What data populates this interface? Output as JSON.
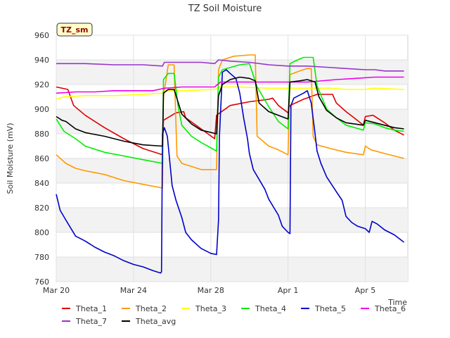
{
  "chart_data": {
    "type": "line",
    "title": "TZ Soil Moisture",
    "xlabel": "Time",
    "ylabel": "Soil Moisture (mV)",
    "site_badge": "TZ_sm",
    "x_range_days": [
      0,
      18.2
    ],
    "x_ticks": [
      {
        "label": "Mar 20",
        "day": 0
      },
      {
        "label": "Mar 24",
        "day": 4
      },
      {
        "label": "Mar 28",
        "day": 8
      },
      {
        "label": "Apr 1",
        "day": 12
      },
      {
        "label": "Apr 5",
        "day": 16
      }
    ],
    "ylim": [
      760,
      960
    ],
    "y_ticks": [
      760,
      780,
      800,
      820,
      840,
      860,
      880,
      900,
      920,
      940,
      960
    ],
    "grid": true,
    "legend_placement": "bottom",
    "series": [
      {
        "name": "Theta_1",
        "color": "#dd0000",
        "points": [
          [
            0,
            918
          ],
          [
            0.6,
            916
          ],
          [
            0.9,
            903
          ],
          [
            1.5,
            895
          ],
          [
            2.5,
            885
          ],
          [
            3.5,
            876
          ],
          [
            4.5,
            868
          ],
          [
            5.5,
            863
          ],
          [
            5.55,
            891
          ],
          [
            6.2,
            897
          ],
          [
            6.6,
            898
          ],
          [
            6.7,
            893
          ],
          [
            7.5,
            884
          ],
          [
            8.2,
            876
          ],
          [
            8.3,
            895
          ],
          [
            9,
            903
          ],
          [
            10,
            906
          ],
          [
            11,
            908
          ],
          [
            11.2,
            909
          ],
          [
            11.5,
            903
          ],
          [
            12,
            897
          ],
          [
            12.1,
            903
          ],
          [
            12.8,
            908
          ],
          [
            13.5,
            912
          ],
          [
            14.3,
            912
          ],
          [
            14.5,
            905
          ],
          [
            15,
            898
          ],
          [
            15.5,
            892
          ],
          [
            15.9,
            887
          ],
          [
            16,
            894
          ],
          [
            16.4,
            895
          ],
          [
            17,
            889
          ],
          [
            17.5,
            883
          ],
          [
            18,
            879
          ]
        ]
      },
      {
        "name": "Theta_2",
        "color": "#ff9900",
        "points": [
          [
            0,
            863
          ],
          [
            0.5,
            856
          ],
          [
            1,
            852
          ],
          [
            1.5,
            850
          ],
          [
            2.5,
            847
          ],
          [
            3.5,
            842
          ],
          [
            4.5,
            839
          ],
          [
            5.5,
            836
          ],
          [
            5.55,
            910
          ],
          [
            5.8,
            936
          ],
          [
            6.1,
            936
          ],
          [
            6.25,
            862
          ],
          [
            6.5,
            856
          ],
          [
            7.5,
            851
          ],
          [
            8.3,
            851
          ],
          [
            8.4,
            932
          ],
          [
            8.6,
            940
          ],
          [
            9.2,
            943
          ],
          [
            10,
            944
          ],
          [
            10.3,
            944
          ],
          [
            10.4,
            878
          ],
          [
            11,
            870
          ],
          [
            11.5,
            867
          ],
          [
            12,
            863
          ],
          [
            12.1,
            928
          ],
          [
            12.6,
            931
          ],
          [
            13,
            933
          ],
          [
            13.2,
            933
          ],
          [
            13.3,
            878
          ],
          [
            13.5,
            871
          ],
          [
            14.2,
            868
          ],
          [
            15,
            865
          ],
          [
            15.9,
            863
          ],
          [
            16,
            870
          ],
          [
            16.3,
            867
          ],
          [
            17,
            864
          ],
          [
            17.5,
            862
          ],
          [
            18,
            860
          ]
        ]
      },
      {
        "name": "Theta_3",
        "color": "#ffff00",
        "points": [
          [
            0,
            908
          ],
          [
            0.4,
            910
          ],
          [
            1.5,
            911
          ],
          [
            3,
            911
          ],
          [
            4.5,
            912
          ],
          [
            5.5,
            913
          ],
          [
            5.6,
            915
          ],
          [
            6.5,
            915
          ],
          [
            8.2,
            916
          ],
          [
            8.4,
            918
          ],
          [
            9.5,
            918
          ],
          [
            11,
            917
          ],
          [
            12,
            917
          ],
          [
            12.4,
            917
          ],
          [
            13.3,
            917
          ],
          [
            14.2,
            917
          ],
          [
            15,
            916
          ],
          [
            16,
            916
          ],
          [
            16.4,
            917
          ],
          [
            18,
            916
          ]
        ]
      },
      {
        "name": "Theta_4",
        "color": "#00ee00",
        "points": [
          [
            0,
            892
          ],
          [
            0.4,
            882
          ],
          [
            1,
            876
          ],
          [
            1.5,
            870
          ],
          [
            2.5,
            865
          ],
          [
            3.5,
            862
          ],
          [
            4.5,
            859
          ],
          [
            5.5,
            856
          ],
          [
            5.55,
            924
          ],
          [
            5.8,
            929
          ],
          [
            6.1,
            929
          ],
          [
            6.3,
            903
          ],
          [
            6.5,
            887
          ],
          [
            7,
            878
          ],
          [
            7.5,
            873
          ],
          [
            8.3,
            866
          ],
          [
            8.4,
            926
          ],
          [
            8.6,
            932
          ],
          [
            9.5,
            936
          ],
          [
            10,
            937
          ],
          [
            10.4,
            918
          ],
          [
            11,
            902
          ],
          [
            11.5,
            890
          ],
          [
            12,
            884
          ],
          [
            12.1,
            937
          ],
          [
            12.5,
            940
          ],
          [
            12.8,
            942
          ],
          [
            13.3,
            942
          ],
          [
            13.5,
            919
          ],
          [
            14,
            900
          ],
          [
            14.5,
            893
          ],
          [
            15,
            887
          ],
          [
            15.9,
            883
          ],
          [
            16,
            889
          ],
          [
            16.5,
            888
          ],
          [
            17,
            885
          ],
          [
            17.5,
            883
          ],
          [
            18,
            882
          ]
        ]
      },
      {
        "name": "Theta_5",
        "color": "#0000cc",
        "points": [
          [
            0,
            831
          ],
          [
            0.2,
            818
          ],
          [
            0.5,
            810
          ],
          [
            1,
            797
          ],
          [
            1.5,
            793
          ],
          [
            2,
            788
          ],
          [
            2.5,
            784
          ],
          [
            3,
            781
          ],
          [
            3.5,
            777
          ],
          [
            4,
            774
          ],
          [
            4.5,
            772
          ],
          [
            5,
            769
          ],
          [
            5.4,
            767
          ],
          [
            5.45,
            768
          ],
          [
            5.5,
            880
          ],
          [
            5.6,
            885
          ],
          [
            5.75,
            878
          ],
          [
            6,
            838
          ],
          [
            6.2,
            826
          ],
          [
            6.5,
            812
          ],
          [
            6.7,
            800
          ],
          [
            7,
            794
          ],
          [
            7.5,
            787
          ],
          [
            8,
            783
          ],
          [
            8.3,
            782
          ],
          [
            8.4,
            810
          ],
          [
            8.45,
            878
          ],
          [
            8.6,
            930
          ],
          [
            8.8,
            932
          ],
          [
            9,
            929
          ],
          [
            9.3,
            925
          ],
          [
            9.5,
            913
          ],
          [
            9.7,
            893
          ],
          [
            9.9,
            876
          ],
          [
            10,
            864
          ],
          [
            10.2,
            851
          ],
          [
            10.5,
            843
          ],
          [
            10.8,
            835
          ],
          [
            11,
            827
          ],
          [
            11.5,
            814
          ],
          [
            11.7,
            805
          ],
          [
            12,
            800
          ],
          [
            12.1,
            799
          ],
          [
            12.15,
            903
          ],
          [
            12.3,
            909
          ],
          [
            12.8,
            913
          ],
          [
            13,
            915
          ],
          [
            13.2,
            905
          ],
          [
            13.4,
            880
          ],
          [
            13.5,
            866
          ],
          [
            13.7,
            856
          ],
          [
            14,
            845
          ],
          [
            14.5,
            833
          ],
          [
            14.8,
            826
          ],
          [
            15,
            813
          ],
          [
            15.3,
            808
          ],
          [
            15.6,
            805
          ],
          [
            16,
            803
          ],
          [
            16.2,
            800
          ],
          [
            16.35,
            809
          ],
          [
            16.6,
            807
          ],
          [
            17,
            802
          ],
          [
            17.5,
            798
          ],
          [
            18,
            792
          ]
        ]
      },
      {
        "name": "Theta_6",
        "color": "#ee00ee",
        "points": [
          [
            0,
            913
          ],
          [
            1,
            914
          ],
          [
            2,
            914
          ],
          [
            3,
            915
          ],
          [
            4,
            915
          ],
          [
            5,
            915
          ],
          [
            5.6,
            917
          ],
          [
            6.5,
            918
          ],
          [
            8.2,
            918
          ],
          [
            8.5,
            922
          ],
          [
            9.5,
            922
          ],
          [
            11,
            922
          ],
          [
            12,
            922
          ],
          [
            12.5,
            922
          ],
          [
            13,
            922
          ],
          [
            14.5,
            924
          ],
          [
            15.5,
            925
          ],
          [
            16.5,
            926
          ],
          [
            18,
            926
          ]
        ]
      },
      {
        "name": "Theta_7",
        "color": "#9933cc",
        "points": [
          [
            0,
            937
          ],
          [
            1.5,
            937
          ],
          [
            3,
            936
          ],
          [
            4.5,
            936
          ],
          [
            5.5,
            935
          ],
          [
            5.6,
            938
          ],
          [
            6.5,
            938
          ],
          [
            7.5,
            938
          ],
          [
            8.2,
            937
          ],
          [
            8.4,
            940
          ],
          [
            9,
            939
          ],
          [
            10,
            938
          ],
          [
            11,
            936
          ],
          [
            12,
            935
          ],
          [
            13,
            935
          ],
          [
            14,
            934
          ],
          [
            15,
            933
          ],
          [
            16,
            932
          ],
          [
            16.5,
            932
          ],
          [
            17,
            931
          ],
          [
            18,
            931
          ]
        ]
      },
      {
        "name": "Theta_avg",
        "color": "#000000",
        "points": [
          [
            0,
            894
          ],
          [
            0.3,
            891
          ],
          [
            0.5,
            890
          ],
          [
            1,
            884
          ],
          [
            1.5,
            881
          ],
          [
            2.5,
            878
          ],
          [
            3.5,
            874
          ],
          [
            4.5,
            871
          ],
          [
            5.5,
            870
          ],
          [
            5.55,
            913
          ],
          [
            5.8,
            916
          ],
          [
            6.1,
            916
          ],
          [
            6.3,
            906
          ],
          [
            6.5,
            896
          ],
          [
            7,
            888
          ],
          [
            7.5,
            883
          ],
          [
            8.3,
            880
          ],
          [
            8.4,
            911
          ],
          [
            8.6,
            920
          ],
          [
            9,
            924
          ],
          [
            9.5,
            926
          ],
          [
            10,
            925
          ],
          [
            10.3,
            923
          ],
          [
            10.5,
            905
          ],
          [
            11,
            898
          ],
          [
            11.5,
            895
          ],
          [
            12,
            892
          ],
          [
            12.1,
            922
          ],
          [
            12.6,
            923
          ],
          [
            13,
            924
          ],
          [
            13.4,
            922
          ],
          [
            13.6,
            910
          ],
          [
            14,
            899
          ],
          [
            14.5,
            893
          ],
          [
            15,
            889
          ],
          [
            15.9,
            887
          ],
          [
            16,
            891
          ],
          [
            16.5,
            889
          ],
          [
            17,
            887
          ],
          [
            17.5,
            885
          ],
          [
            18,
            884
          ]
        ]
      }
    ]
  }
}
